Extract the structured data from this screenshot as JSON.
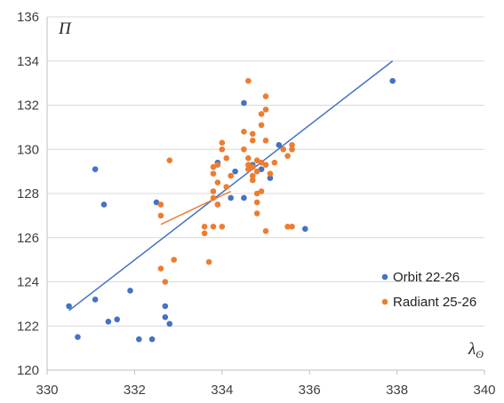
{
  "chart_data": {
    "type": "scatter",
    "xlabel": "λ",
    "xlabel_subscript": "ʘ",
    "ylabel": "Π",
    "xlim": [
      330,
      340
    ],
    "ylim": [
      120,
      136
    ],
    "x_ticks": [
      330,
      332,
      334,
      336,
      338,
      340
    ],
    "y_ticks": [
      120,
      122,
      124,
      126,
      128,
      130,
      132,
      134,
      136
    ],
    "grid": "horizontal",
    "legend": "bottom-right",
    "series": [
      {
        "name": "Orbit 22-26",
        "color": "#4472C4",
        "points": [
          [
            330.5,
            122.9
          ],
          [
            330.7,
            121.5
          ],
          [
            331.1,
            123.2
          ],
          [
            331.1,
            129.1
          ],
          [
            331.3,
            127.5
          ],
          [
            331.4,
            122.2
          ],
          [
            331.6,
            122.3
          ],
          [
            331.9,
            123.6
          ],
          [
            332.1,
            121.4
          ],
          [
            332.4,
            121.4
          ],
          [
            332.5,
            127.6
          ],
          [
            332.7,
            122.9
          ],
          [
            332.7,
            122.4
          ],
          [
            332.8,
            122.1
          ],
          [
            333.9,
            129.4
          ],
          [
            333.9,
            127.5
          ],
          [
            334.2,
            127.8
          ],
          [
            334.3,
            129.0
          ],
          [
            334.5,
            127.8
          ],
          [
            334.5,
            132.1
          ],
          [
            334.7,
            129.3
          ],
          [
            334.9,
            129.1
          ],
          [
            335.1,
            128.7
          ],
          [
            335.3,
            130.2
          ],
          [
            335.9,
            126.4
          ],
          [
            337.9,
            133.1
          ]
        ],
        "trend": [
          [
            330.5,
            122.7
          ],
          [
            337.9,
            134.0
          ]
        ]
      },
      {
        "name": "Radiant 25-26",
        "color": "#ED7D31",
        "points": [
          [
            332.6,
            124.6
          ],
          [
            332.6,
            127.5
          ],
          [
            332.6,
            127.0
          ],
          [
            332.7,
            124.0
          ],
          [
            332.8,
            129.5
          ],
          [
            332.9,
            125.0
          ],
          [
            333.6,
            126.2
          ],
          [
            333.6,
            126.5
          ],
          [
            333.7,
            124.9
          ],
          [
            333.8,
            126.5
          ],
          [
            333.8,
            127.8
          ],
          [
            333.8,
            128.1
          ],
          [
            333.8,
            128.9
          ],
          [
            333.8,
            129.2
          ],
          [
            333.9,
            128.5
          ],
          [
            333.9,
            129.3
          ],
          [
            333.9,
            127.5
          ],
          [
            334.0,
            130.3
          ],
          [
            334.0,
            130.0
          ],
          [
            334.0,
            126.5
          ],
          [
            334.1,
            128.3
          ],
          [
            334.1,
            129.6
          ],
          [
            334.2,
            128.8
          ],
          [
            334.5,
            130.8
          ],
          [
            334.5,
            130.0
          ],
          [
            334.6,
            133.1
          ],
          [
            334.6,
            129.6
          ],
          [
            334.6,
            129.3
          ],
          [
            334.6,
            129.1
          ],
          [
            334.7,
            130.4
          ],
          [
            334.7,
            130.7
          ],
          [
            334.7,
            129.2
          ],
          [
            334.7,
            128.8
          ],
          [
            334.7,
            128.6
          ],
          [
            334.8,
            128.0
          ],
          [
            334.8,
            127.6
          ],
          [
            334.8,
            127.1
          ],
          [
            334.8,
            129.5
          ],
          [
            334.8,
            129.0
          ],
          [
            334.9,
            131.6
          ],
          [
            334.9,
            131.1
          ],
          [
            334.9,
            129.4
          ],
          [
            334.9,
            128.1
          ],
          [
            335.0,
            132.4
          ],
          [
            335.0,
            131.8
          ],
          [
            335.0,
            130.4
          ],
          [
            335.0,
            129.3
          ],
          [
            335.0,
            126.3
          ],
          [
            335.1,
            128.9
          ],
          [
            335.2,
            129.4
          ],
          [
            335.4,
            130.0
          ],
          [
            335.5,
            129.7
          ],
          [
            335.5,
            126.5
          ],
          [
            335.6,
            130.2
          ],
          [
            335.6,
            130.0
          ],
          [
            335.6,
            126.5
          ]
        ],
        "trend": [
          [
            332.6,
            126.6
          ],
          [
            334.2,
            128.1
          ]
        ]
      }
    ]
  }
}
